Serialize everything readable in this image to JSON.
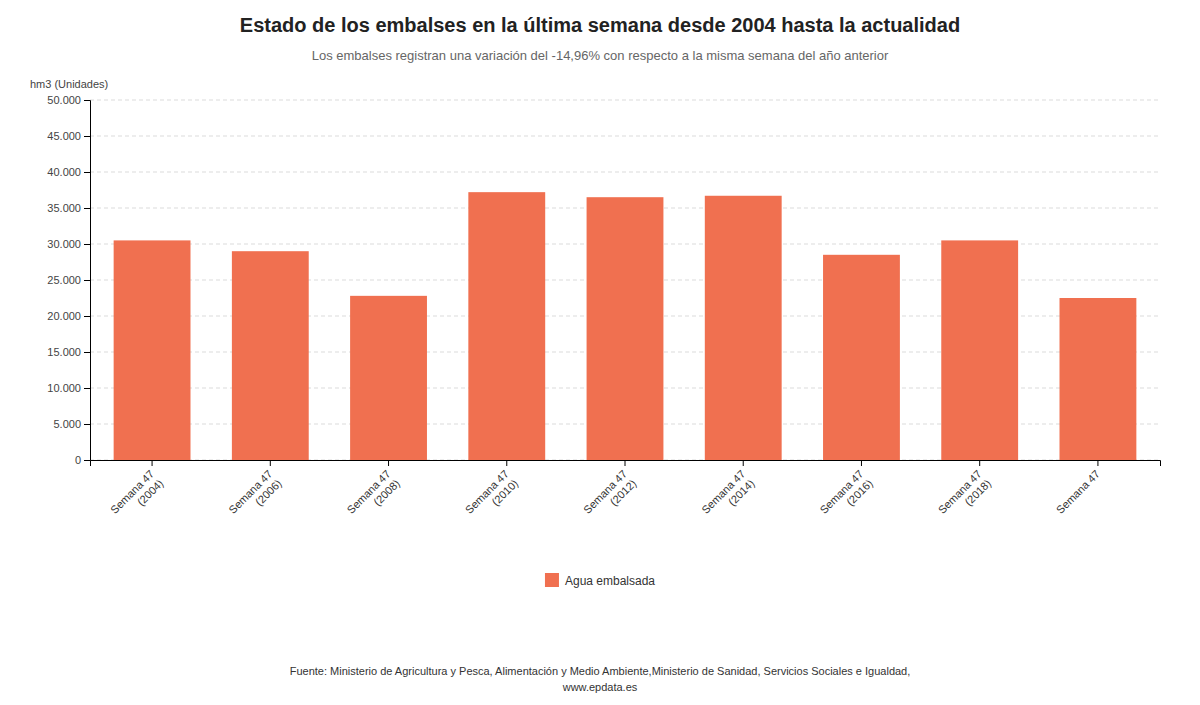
{
  "chart_data": {
    "type": "bar",
    "title": "Estado de los embalses en la última semana desde 2004 hasta la actualidad",
    "subtitle": "Los embalses registran una variación del -14,96% con respecto a la misma semana del año anterior",
    "ylabel": "hm3 (Unidades)",
    "categories": [
      "Semana 47\n(2004)",
      "Semana 47\n(2006)",
      "Semana 47\n(2008)",
      "Semana 47\n(2010)",
      "Semana 47\n(2012)",
      "Semana 47\n(2014)",
      "Semana 47\n(2016)",
      "Semana 47\n(2018)",
      "Semana 47"
    ],
    "series": [
      {
        "name": "Agua embalsada",
        "color": "#f07050",
        "values": [
          30500,
          29000,
          22800,
          37200,
          36500,
          36700,
          28500,
          30500,
          22500
        ]
      }
    ],
    "ylim": [
      0,
      50000
    ],
    "yticks": [
      0,
      {
        "value": 5000,
        "label": "5.000"
      },
      {
        "value": 10000,
        "label": "10.000"
      },
      {
        "value": 15000,
        "label": "15.000"
      },
      {
        "value": 20000,
        "label": "20.000"
      },
      {
        "value": 25000,
        "label": "25.000"
      },
      {
        "value": 30000,
        "label": "30.000"
      },
      {
        "value": 35000,
        "label": "35.000"
      },
      {
        "value": 40000,
        "label": "40.000"
      },
      {
        "value": 45000,
        "label": "45.000"
      },
      {
        "value": 50000,
        "label": "50.000"
      }
    ],
    "grid": true,
    "legend": "bottom",
    "annotations": [
      "Fuente: Ministerio de Agricultura y Pesca, Alimentación y Medio Ambiente,Ministerio de Sanidad, Servicios Sociales e Igualdad,",
      "www.epdata.es"
    ]
  }
}
